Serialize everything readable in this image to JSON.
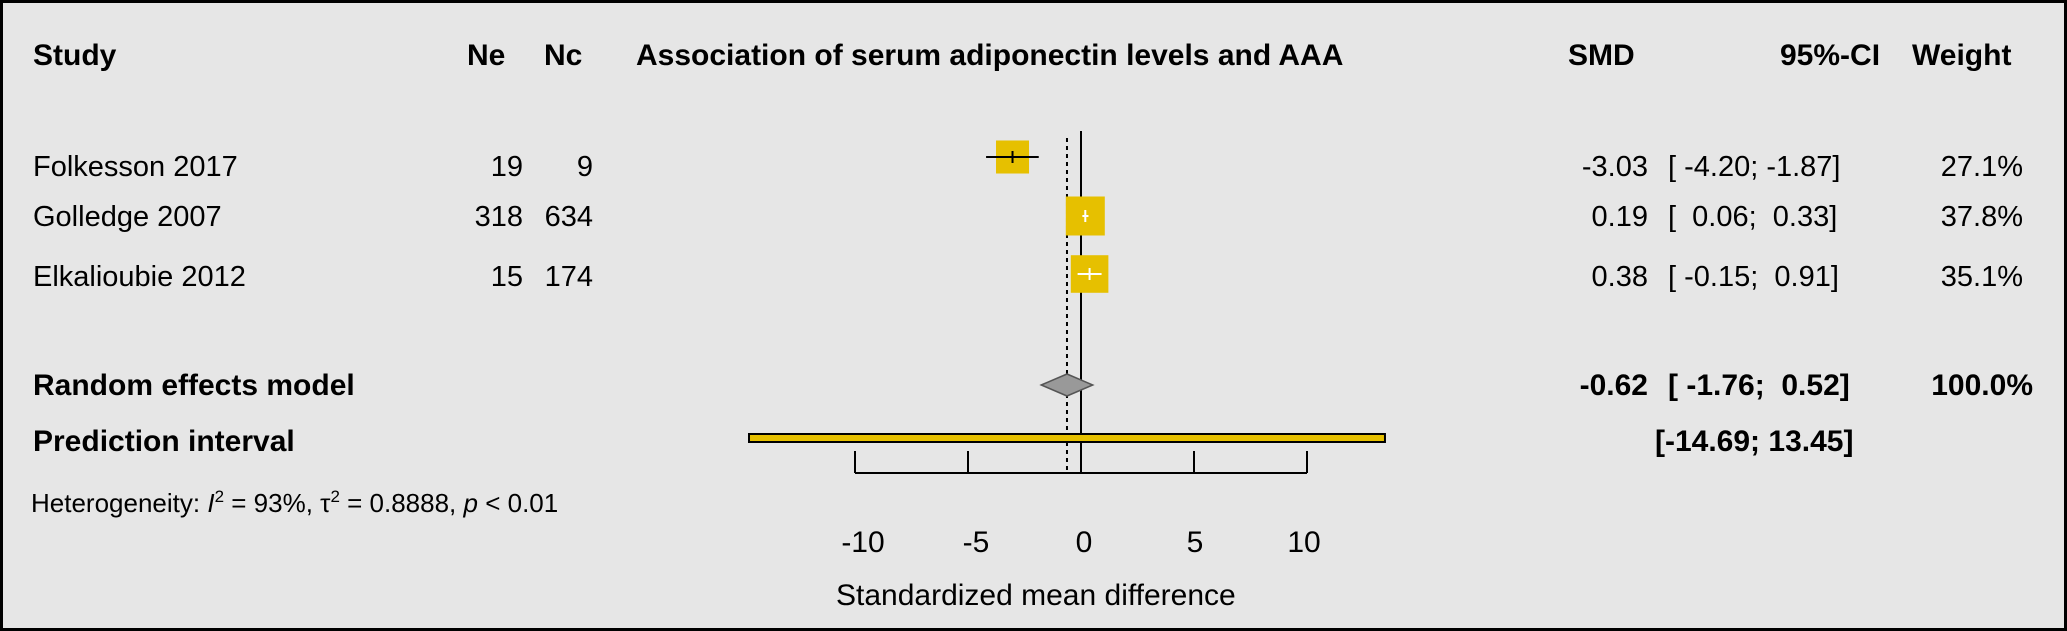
{
  "headers": {
    "study": "Study",
    "ne": "Ne",
    "nc": "Nc",
    "plot_title": "Association of serum adiponectin levels and AAA",
    "smd": "SMD",
    "ci": "95%-CI",
    "weight": "Weight"
  },
  "studies": [
    {
      "name": "Folkesson 2017",
      "ne": "19",
      "nc": "9",
      "smd": "-3.03",
      "ci": "[ -4.20; -1.87]",
      "weight": "27.1%"
    },
    {
      "name": "Golledge 2007",
      "ne": "318",
      "nc": "634",
      "smd": "0.19",
      "ci": "[  0.06;  0.33]",
      "weight": "37.8%"
    },
    {
      "name": "Elkalioubie 2012",
      "ne": "15",
      "nc": "174",
      "smd": "0.38",
      "ci": "[ -0.15;  0.91]",
      "weight": "35.1%"
    }
  ],
  "random": {
    "label": "Random effects model",
    "smd": "-0.62",
    "ci": "[ -1.76;  0.52]",
    "weight": "100.0%"
  },
  "prediction": {
    "label": "Prediction interval",
    "ci": "[-14.69; 13.45]"
  },
  "heterogeneity": {
    "prefix": "Heterogeneity: ",
    "i_symbol": "I",
    "i_sup": "2",
    "i_val": " = 93%, ",
    "tau_symbol": "τ",
    "tau_sup": "2",
    "tau_val": " = 0.8888, ",
    "p_symbol": "p",
    "p_val": " < 0.01"
  },
  "colors": {
    "box": "#e6c000",
    "diamond": "#999999",
    "background": "#e6e6e6"
  },
  "chart_data": {
    "type": "forest",
    "title": "Association of serum adiponectin levels and AAA",
    "xlabel": "Standardized mean difference",
    "xticks": [
      -10,
      -5,
      0,
      5,
      10
    ],
    "xtick_labels": [
      "-10",
      "-5",
      "0",
      "5",
      "10"
    ],
    "xlim": [
      -10,
      10
    ],
    "null_line": 0,
    "studies": [
      {
        "name": "Folkesson 2017",
        "smd": -3.03,
        "lower": -4.2,
        "upper": -1.87,
        "weight": 27.1
      },
      {
        "name": "Golledge 2007",
        "smd": 0.19,
        "lower": 0.06,
        "upper": 0.33,
        "weight": 37.8
      },
      {
        "name": "Elkalioubie 2012",
        "smd": 0.38,
        "lower": -0.15,
        "upper": 0.91,
        "weight": 35.1
      }
    ],
    "random_effects": {
      "smd": -0.62,
      "lower": -1.76,
      "upper": 0.52
    },
    "prediction_interval": {
      "lower": -14.69,
      "upper": 13.45
    }
  }
}
